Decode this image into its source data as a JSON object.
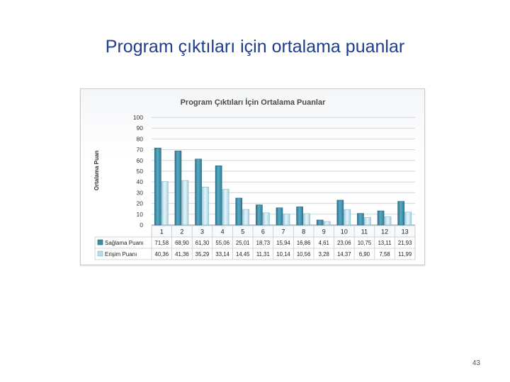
{
  "slide": {
    "title": "Program çıktıları için ortalama puanlar",
    "page_number": "43"
  },
  "colors": {
    "title": "#1f3d8f",
    "series_1": "#3e8ea7",
    "series_2": "#b9dbe8",
    "chart_title": "#4a4a4a"
  },
  "chart_data": {
    "type": "bar",
    "title": "Program Çıktıları İçin Ortalama Puanlar",
    "ylabel": "Ortalama Puan",
    "xlabel": "",
    "ylim": [
      0,
      100
    ],
    "yticks": [
      "0",
      "10",
      "20",
      "30",
      "40",
      "50",
      "60",
      "70",
      "80",
      "90",
      "100"
    ],
    "grid": true,
    "legend": "data-table",
    "categories": [
      "1",
      "2",
      "3",
      "4",
      "5",
      "6",
      "7",
      "8",
      "9",
      "10",
      "11",
      "12",
      "13"
    ],
    "series": [
      {
        "name": "Sağlama Puanı",
        "values": [
          71.58,
          68.9,
          61.3,
          55.06,
          25.01,
          18.73,
          15.94,
          16.86,
          4.61,
          23.06,
          10.75,
          13.11,
          21.93
        ],
        "labels": [
          "71,58",
          "68,90",
          "61,30",
          "55,06",
          "25,01",
          "18,73",
          "15,94",
          "16,86",
          "4,61",
          "23,06",
          "10,75",
          "13,11",
          "21,93"
        ]
      },
      {
        "name": "Erişim Puanı",
        "values": [
          40.36,
          41.36,
          35.29,
          33.14,
          14.45,
          11.31,
          10.14,
          10.56,
          3.28,
          14.37,
          6.9,
          7.58,
          11.99
        ],
        "labels": [
          "40,36",
          "41,36",
          "35,29",
          "33,14",
          "14,45",
          "11,31",
          "10,14",
          "10,56",
          "3,28",
          "14,37",
          "6,90",
          "7,58",
          "11,99"
        ]
      }
    ]
  }
}
